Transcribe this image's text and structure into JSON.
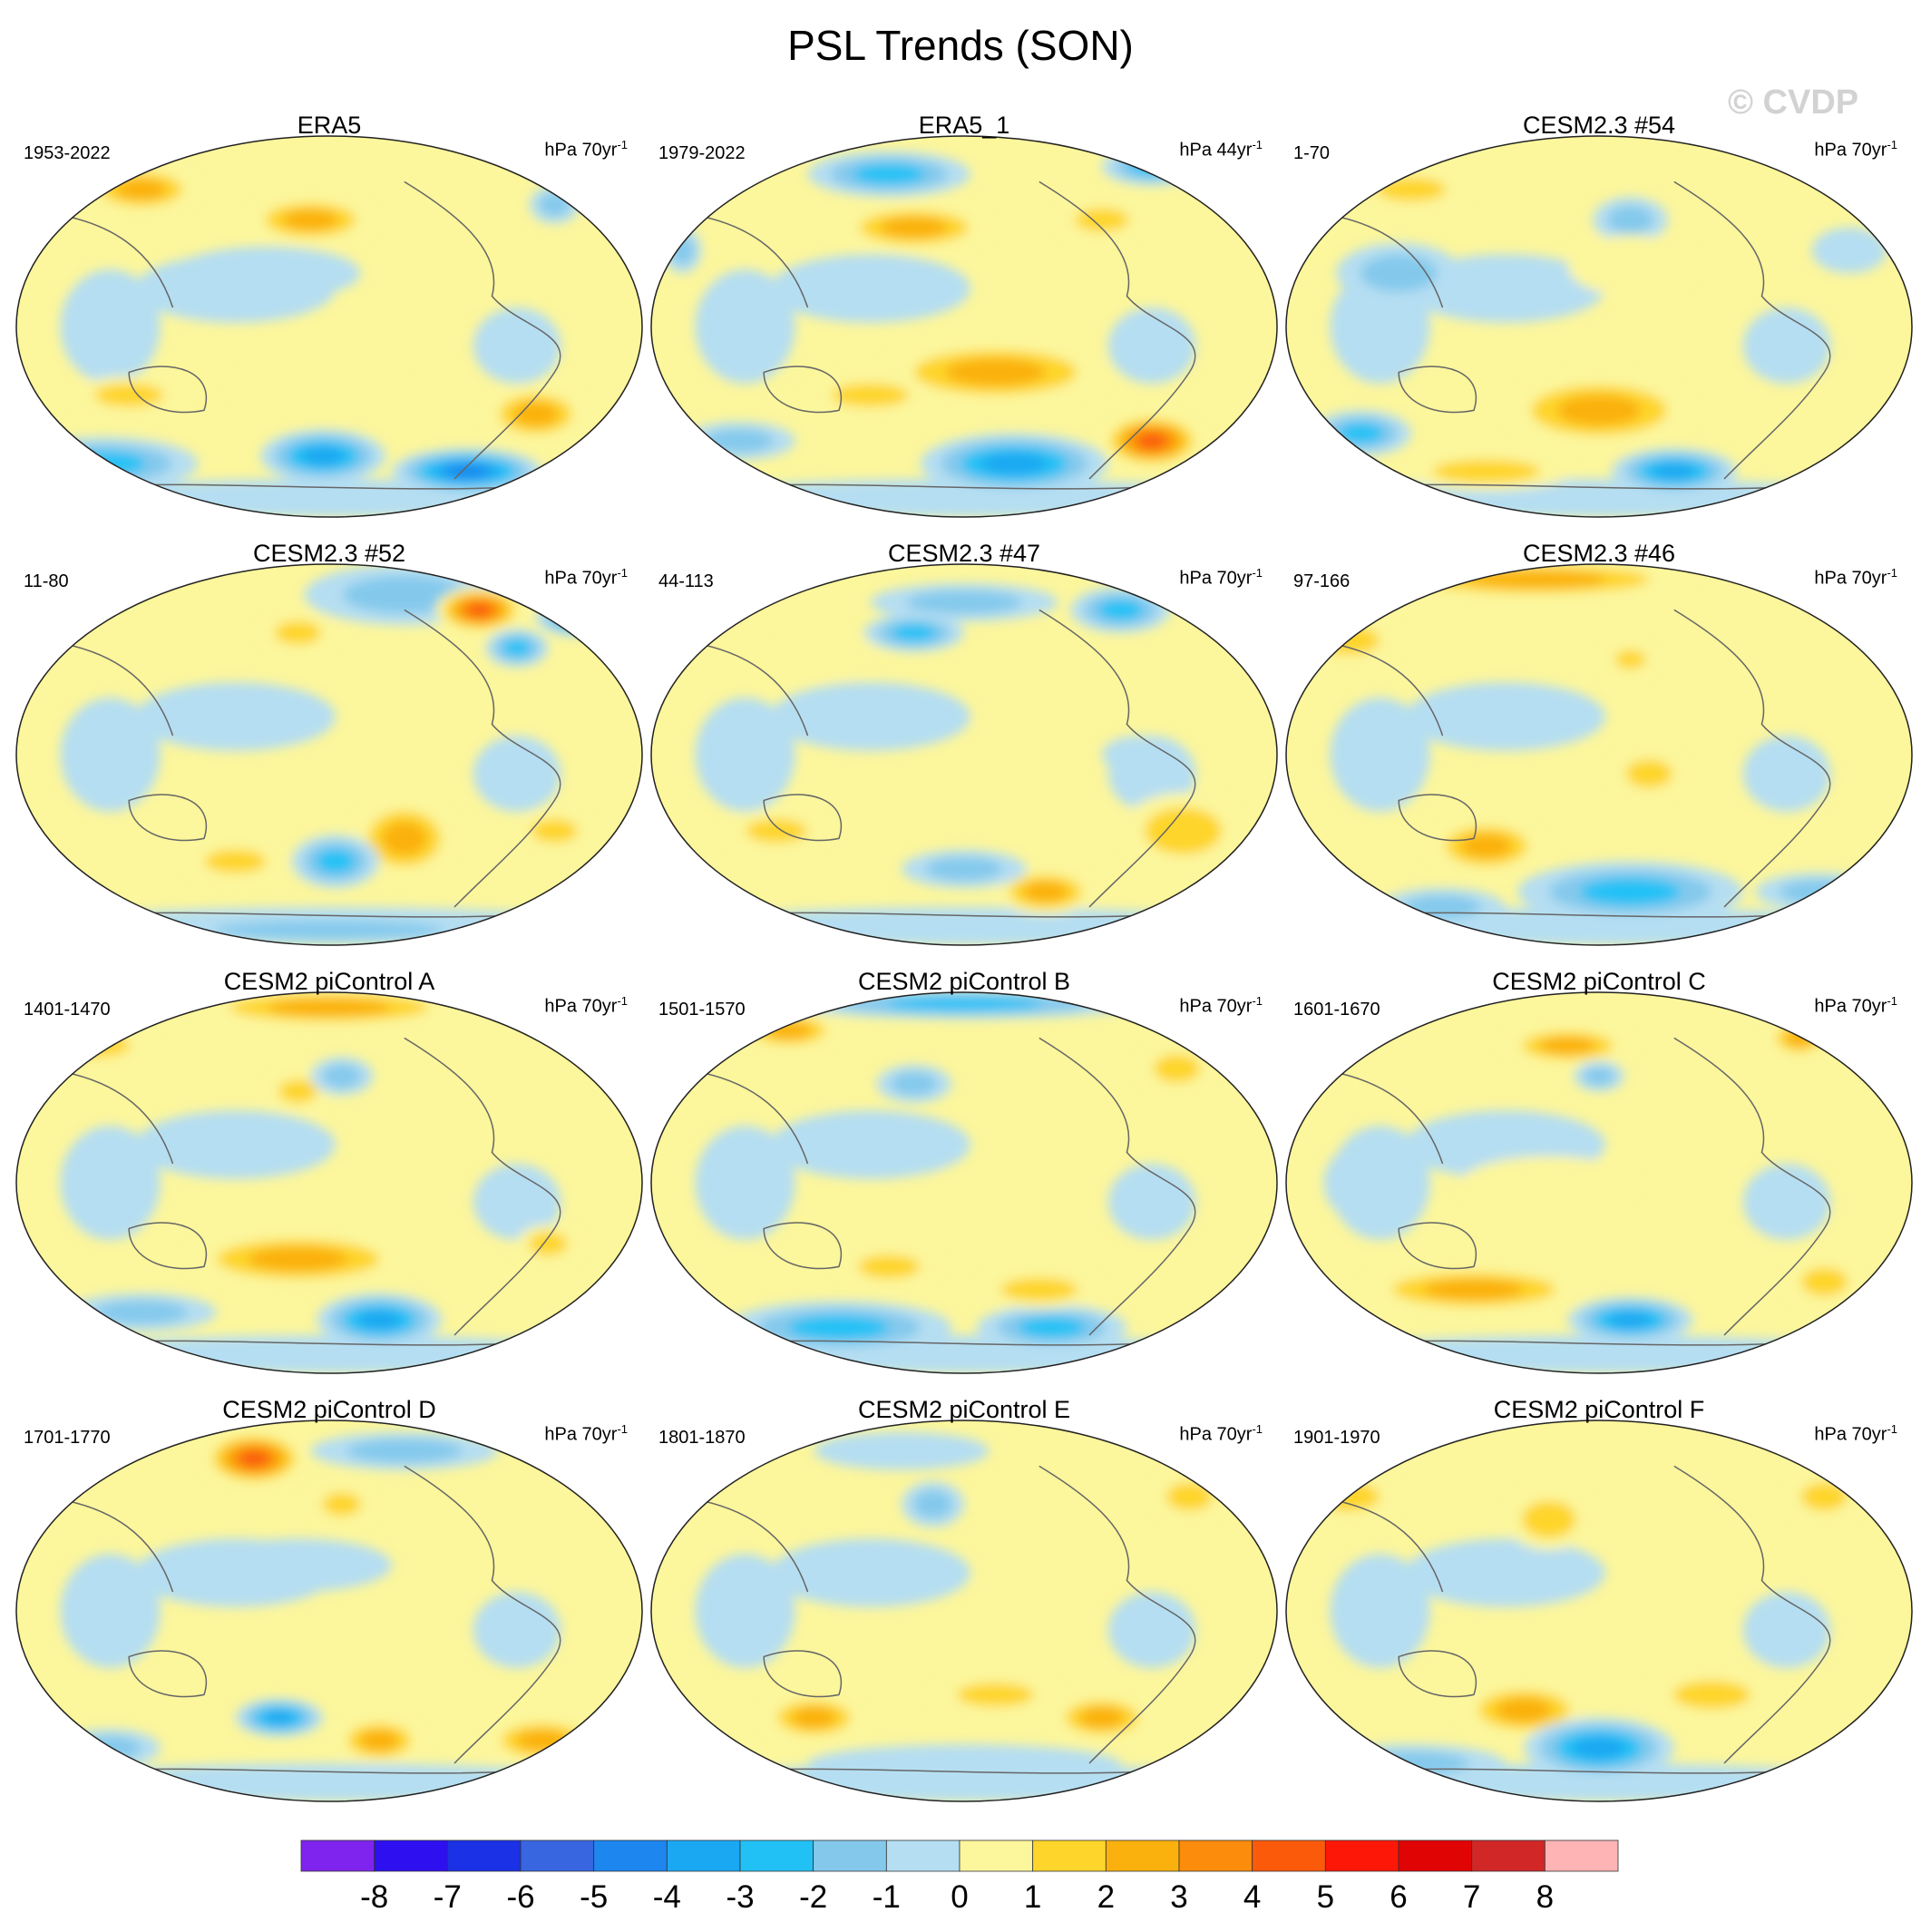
{
  "title": "PSL Trends (SON)",
  "watermark": "© CVDP",
  "panels": [
    {
      "title": "ERA5",
      "period": "1953-2022",
      "units": "hPa 70yr",
      "units_sup": "-1"
    },
    {
      "title": "ERA5_1",
      "period": "1979-2022",
      "units": "hPa 44yr",
      "units_sup": "-1"
    },
    {
      "title": "CESM2.3 #54",
      "period": "1-70",
      "units": "hPa 70yr",
      "units_sup": "-1"
    },
    {
      "title": "CESM2.3 #52",
      "period": "11-80",
      "units": "hPa 70yr",
      "units_sup": "-1"
    },
    {
      "title": "CESM2.3 #47",
      "period": "44-113",
      "units": "hPa 70yr",
      "units_sup": "-1"
    },
    {
      "title": "CESM2.3 #46",
      "period": "97-166",
      "units": "hPa 70yr",
      "units_sup": "-1"
    },
    {
      "title": "CESM2 piControl A",
      "period": "1401-1470",
      "units": "hPa 70yr",
      "units_sup": "-1"
    },
    {
      "title": "CESM2 piControl B",
      "period": "1501-1570",
      "units": "hPa 70yr",
      "units_sup": "-1"
    },
    {
      "title": "CESM2 piControl C",
      "period": "1601-1670",
      "units": "hPa 70yr",
      "units_sup": "-1"
    },
    {
      "title": "CESM2 piControl D",
      "period": "1701-1770",
      "units": "hPa 70yr",
      "units_sup": "-1"
    },
    {
      "title": "CESM2 piControl E",
      "period": "1801-1870",
      "units": "hPa 70yr",
      "units_sup": "-1"
    },
    {
      "title": "CESM2 piControl F",
      "period": "1901-1970",
      "units": "hPa 70yr",
      "units_sup": "-1"
    }
  ],
  "chart_data": {
    "type": "heatmap",
    "title": "PSL Trends (SON)",
    "projection": "Robinson (Pacific-centered)",
    "panel_count": 12,
    "layout": "4 rows x 3 columns",
    "colorbar": {
      "labels": [
        "-8",
        "-7",
        "-6",
        "-5",
        "-4",
        "-3",
        "-2",
        "-1",
        "0",
        "1",
        "2",
        "3",
        "4",
        "5",
        "6",
        "7",
        "8"
      ],
      "colors": [
        "#7f24ee",
        "#2d0ff0",
        "#1b31e6",
        "#3866e0",
        "#1d86ef",
        "#1ba8f2",
        "#22c1f5",
        "#84c9ec",
        "#b5def2",
        "#fcf69c",
        "#fed52b",
        "#fbb10d",
        "#fb8c0c",
        "#fc5a0b",
        "#fd1707",
        "#e00404",
        "#d12727",
        "#feb4b5"
      ]
    },
    "maps": [
      {
        "blobs": [
          [
            0.2,
            0.14,
            0.09,
            0.06,
            3
          ],
          [
            0.47,
            0.22,
            0.1,
            0.06,
            3
          ],
          [
            0.86,
            0.18,
            0.04,
            0.05,
            -2
          ],
          [
            0.4,
            0.36,
            0.15,
            0.07,
            -1
          ],
          [
            0.18,
            0.68,
            0.09,
            0.05,
            2
          ],
          [
            0.48,
            0.66,
            0.14,
            0.05,
            1
          ],
          [
            0.83,
            0.73,
            0.08,
            0.07,
            3
          ],
          [
            0.14,
            0.86,
            0.15,
            0.07,
            -3
          ],
          [
            0.49,
            0.84,
            0.1,
            0.07,
            -4
          ],
          [
            0.72,
            0.88,
            0.12,
            0.06,
            -5
          ],
          [
            0.92,
            0.9,
            0.06,
            0.04,
            -3
          ]
        ]
      },
      {
        "blobs": [
          [
            0.38,
            0.1,
            0.13,
            0.06,
            -3
          ],
          [
            0.8,
            0.08,
            0.08,
            0.05,
            -3
          ],
          [
            0.05,
            0.3,
            0.03,
            0.06,
            -2
          ],
          [
            0.42,
            0.24,
            0.12,
            0.06,
            3
          ],
          [
            0.72,
            0.22,
            0.07,
            0.05,
            2
          ],
          [
            0.55,
            0.62,
            0.18,
            0.08,
            3
          ],
          [
            0.35,
            0.68,
            0.1,
            0.05,
            2
          ],
          [
            0.58,
            0.86,
            0.15,
            0.08,
            -4
          ],
          [
            0.8,
            0.8,
            0.08,
            0.07,
            5
          ],
          [
            0.14,
            0.8,
            0.09,
            0.05,
            -2
          ]
        ]
      },
      {
        "blobs": [
          [
            0.2,
            0.14,
            0.09,
            0.05,
            2
          ],
          [
            0.55,
            0.22,
            0.06,
            0.06,
            -2
          ],
          [
            0.18,
            0.36,
            0.1,
            0.08,
            -2
          ],
          [
            0.55,
            0.34,
            0.1,
            0.08,
            1
          ],
          [
            0.9,
            0.3,
            0.06,
            0.06,
            -1
          ],
          [
            0.12,
            0.78,
            0.08,
            0.06,
            -3
          ],
          [
            0.5,
            0.72,
            0.15,
            0.09,
            3
          ],
          [
            0.62,
            0.88,
            0.1,
            0.06,
            -4
          ],
          [
            0.32,
            0.88,
            0.14,
            0.05,
            2
          ]
        ]
      },
      {
        "blobs": [
          [
            0.62,
            0.08,
            0.16,
            0.08,
            -2
          ],
          [
            0.74,
            0.12,
            0.07,
            0.06,
            5
          ],
          [
            0.9,
            0.14,
            0.07,
            0.05,
            -4
          ],
          [
            0.45,
            0.18,
            0.06,
            0.05,
            2
          ],
          [
            0.8,
            0.22,
            0.05,
            0.05,
            -3
          ],
          [
            0.62,
            0.72,
            0.08,
            0.1,
            3
          ],
          [
            0.51,
            0.78,
            0.07,
            0.07,
            -3
          ],
          [
            0.35,
            0.78,
            0.08,
            0.05,
            2
          ],
          [
            0.86,
            0.7,
            0.06,
            0.05,
            2
          ],
          [
            0.5,
            0.96,
            0.3,
            0.04,
            -2
          ]
        ]
      },
      {
        "blobs": [
          [
            0.5,
            0.1,
            0.15,
            0.05,
            -2
          ],
          [
            0.42,
            0.18,
            0.08,
            0.05,
            -3
          ],
          [
            0.75,
            0.12,
            0.08,
            0.06,
            -3
          ],
          [
            0.28,
            0.24,
            0.08,
            0.06,
            1
          ],
          [
            0.85,
            0.7,
            0.1,
            0.1,
            2
          ],
          [
            0.63,
            0.86,
            0.08,
            0.06,
            3
          ],
          [
            0.5,
            0.8,
            0.1,
            0.05,
            -2
          ],
          [
            0.2,
            0.7,
            0.08,
            0.05,
            2
          ],
          [
            0.78,
            0.5,
            0.06,
            0.05,
            -1
          ]
        ]
      },
      {
        "blobs": [
          [
            0.4,
            0.04,
            0.25,
            0.05,
            3
          ],
          [
            0.1,
            0.2,
            0.08,
            0.06,
            2
          ],
          [
            0.55,
            0.25,
            0.04,
            0.04,
            2
          ],
          [
            0.58,
            0.55,
            0.06,
            0.06,
            2
          ],
          [
            0.32,
            0.74,
            0.09,
            0.07,
            3
          ],
          [
            0.55,
            0.86,
            0.18,
            0.08,
            -3
          ],
          [
            0.25,
            0.9,
            0.1,
            0.05,
            -2
          ],
          [
            0.85,
            0.86,
            0.1,
            0.05,
            -2
          ]
        ]
      },
      {
        "blobs": [
          [
            0.5,
            0.04,
            0.22,
            0.05,
            3
          ],
          [
            0.12,
            0.14,
            0.1,
            0.05,
            2
          ],
          [
            0.45,
            0.26,
            0.05,
            0.05,
            2
          ],
          [
            0.52,
            0.22,
            0.05,
            0.05,
            -2
          ],
          [
            0.45,
            0.7,
            0.18,
            0.07,
            3
          ],
          [
            0.58,
            0.86,
            0.1,
            0.07,
            -4
          ],
          [
            0.85,
            0.66,
            0.05,
            0.05,
            2
          ],
          [
            0.2,
            0.84,
            0.12,
            0.05,
            -2
          ]
        ]
      },
      {
        "blobs": [
          [
            0.5,
            0.03,
            0.28,
            0.04,
            -3
          ],
          [
            0.22,
            0.1,
            0.08,
            0.05,
            3
          ],
          [
            0.42,
            0.24,
            0.06,
            0.05,
            -2
          ],
          [
            0.84,
            0.2,
            0.06,
            0.06,
            2
          ],
          [
            0.38,
            0.72,
            0.08,
            0.05,
            2
          ],
          [
            0.3,
            0.88,
            0.18,
            0.07,
            -3
          ],
          [
            0.64,
            0.88,
            0.12,
            0.06,
            -3
          ],
          [
            0.62,
            0.78,
            0.1,
            0.05,
            2
          ]
        ]
      },
      {
        "blobs": [
          [
            0.45,
            0.14,
            0.1,
            0.05,
            3
          ],
          [
            0.5,
            0.22,
            0.04,
            0.04,
            -2
          ],
          [
            0.82,
            0.12,
            0.05,
            0.05,
            3
          ],
          [
            0.42,
            0.5,
            0.14,
            0.07,
            1
          ],
          [
            0.3,
            0.78,
            0.18,
            0.06,
            3
          ],
          [
            0.55,
            0.86,
            0.1,
            0.06,
            -4
          ],
          [
            0.86,
            0.76,
            0.06,
            0.06,
            2
          ],
          [
            0.12,
            0.5,
            0.06,
            0.1,
            -1
          ]
        ]
      },
      {
        "blobs": [
          [
            0.38,
            0.1,
            0.08,
            0.07,
            5
          ],
          [
            0.62,
            0.08,
            0.15,
            0.05,
            -2
          ],
          [
            0.52,
            0.22,
            0.05,
            0.05,
            2
          ],
          [
            0.45,
            0.38,
            0.15,
            0.07,
            -1
          ],
          [
            0.42,
            0.78,
            0.07,
            0.05,
            -4
          ],
          [
            0.58,
            0.84,
            0.07,
            0.06,
            3
          ],
          [
            0.84,
            0.84,
            0.09,
            0.06,
            3
          ],
          [
            0.15,
            0.86,
            0.08,
            0.05,
            -2
          ]
        ]
      },
      {
        "blobs": [
          [
            0.4,
            0.08,
            0.14,
            0.05,
            -1
          ],
          [
            0.45,
            0.22,
            0.05,
            0.06,
            -2
          ],
          [
            0.86,
            0.2,
            0.06,
            0.06,
            2
          ],
          [
            0.26,
            0.78,
            0.08,
            0.06,
            3
          ],
          [
            0.72,
            0.78,
            0.08,
            0.06,
            3
          ],
          [
            0.5,
            0.9,
            0.25,
            0.05,
            -1
          ],
          [
            0.55,
            0.72,
            0.1,
            0.05,
            2
          ]
        ]
      },
      {
        "blobs": [
          [
            0.1,
            0.2,
            0.08,
            0.06,
            2
          ],
          [
            0.42,
            0.26,
            0.07,
            0.08,
            2
          ],
          [
            0.86,
            0.2,
            0.06,
            0.06,
            2
          ],
          [
            0.38,
            0.76,
            0.1,
            0.07,
            3
          ],
          [
            0.5,
            0.86,
            0.12,
            0.08,
            -4
          ],
          [
            0.68,
            0.72,
            0.1,
            0.06,
            2
          ],
          [
            0.2,
            0.9,
            0.15,
            0.05,
            -2
          ]
        ]
      }
    ]
  }
}
